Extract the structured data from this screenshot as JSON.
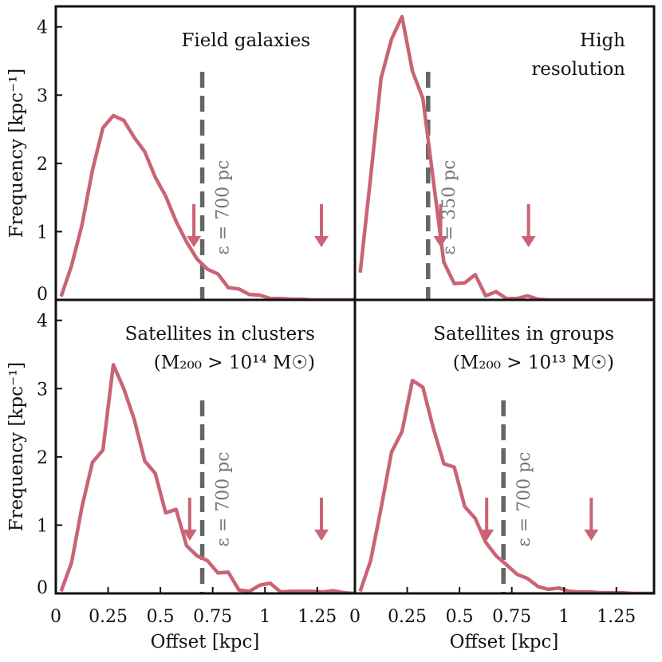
{
  "colors": {
    "line": "#c96475",
    "dashed": "#666666",
    "eps_text": "#777777",
    "axis": "#111111"
  },
  "chart_data": [
    {
      "type": "line",
      "panel": "top-left",
      "title_lines": [
        "Field galaxies"
      ],
      "title_align": "right",
      "ylabel": "Frequency [kpc⁻¹]",
      "xlabel": "",
      "xlim": [
        0,
        1.43
      ],
      "ylim": [
        0,
        4.3
      ],
      "yticks": [
        "0",
        "1",
        "2",
        "3",
        "4"
      ],
      "xticks": [],
      "vline": 0.7,
      "eps_label": "ε = 700 pc",
      "arrows": [
        0.66,
        1.27
      ],
      "x": [
        0.025,
        0.075,
        0.125,
        0.175,
        0.225,
        0.275,
        0.325,
        0.375,
        0.425,
        0.475,
        0.525,
        0.575,
        0.625,
        0.675,
        0.725,
        0.775,
        0.825,
        0.875,
        0.925,
        0.975,
        1.025,
        1.075,
        1.125,
        1.175,
        1.225,
        1.275,
        1.325,
        1.375,
        1.425
      ],
      "values": [
        0.05,
        0.5,
        1.1,
        1.9,
        2.52,
        2.7,
        2.63,
        2.38,
        2.17,
        1.8,
        1.52,
        1.15,
        0.85,
        0.6,
        0.45,
        0.38,
        0.18,
        0.16,
        0.08,
        0.07,
        0.02,
        0.02,
        0.01,
        0.01,
        0.0,
        0.0,
        0.0,
        0.0,
        0.0
      ]
    },
    {
      "type": "line",
      "panel": "top-right",
      "title_lines": [
        "High",
        "resolution"
      ],
      "title_align": "right",
      "ylabel": "",
      "xlabel": "",
      "xlim": [
        0,
        1.43
      ],
      "ylim": [
        0,
        4.3
      ],
      "yticks": [],
      "xticks": [],
      "vline": 0.35,
      "eps_label": "ε = 350 pc",
      "arrows": [
        0.41,
        0.83
      ],
      "x": [
        0.025,
        0.075,
        0.125,
        0.175,
        0.225,
        0.275,
        0.325,
        0.375,
        0.425,
        0.475,
        0.525,
        0.575,
        0.625,
        0.675,
        0.725,
        0.775,
        0.825,
        0.875,
        0.925,
        0.975,
        1.025,
        1.075,
        1.125,
        1.175,
        1.225,
        1.275,
        1.325,
        1.375,
        1.425
      ],
      "values": [
        0.4,
        1.8,
        3.25,
        3.82,
        4.15,
        3.35,
        2.95,
        1.75,
        0.55,
        0.24,
        0.25,
        0.37,
        0.06,
        0.12,
        0.02,
        0.02,
        0.06,
        0.01,
        0.0,
        0.0,
        0.0,
        0.0,
        0.0,
        0.0,
        0.0,
        0.0,
        0.0,
        0.0,
        0.0
      ]
    },
    {
      "type": "line",
      "panel": "bottom-left",
      "title_lines": [
        "Satellites in clusters",
        "(M₂₀₀ > 10¹⁴ M☉)"
      ],
      "title_align": "right",
      "ylabel": "Frequency [kpc⁻¹]",
      "xlabel": "Offset [kpc]",
      "xlim": [
        0,
        1.43
      ],
      "ylim": [
        0,
        4.3
      ],
      "yticks": [
        "0",
        "1",
        "2",
        "3",
        "4"
      ],
      "xticks": [
        {
          "value": 0,
          "label": "0"
        },
        {
          "value": 0.25,
          "label": "0.25"
        },
        {
          "value": 0.5,
          "label": "0.5"
        },
        {
          "value": 0.75,
          "label": "0.75"
        },
        {
          "value": 1.0,
          "label": "1"
        },
        {
          "value": 1.25,
          "label": "1.25"
        }
      ],
      "vline": 0.7,
      "eps_label": "ε = 700 pc",
      "arrows": [
        0.64,
        1.27
      ],
      "x": [
        0.025,
        0.075,
        0.125,
        0.175,
        0.225,
        0.275,
        0.325,
        0.375,
        0.425,
        0.475,
        0.525,
        0.575,
        0.625,
        0.675,
        0.725,
        0.775,
        0.825,
        0.875,
        0.925,
        0.975,
        1.025,
        1.075,
        1.125,
        1.175,
        1.225,
        1.275,
        1.325,
        1.375,
        1.425
      ],
      "values": [
        0.03,
        0.45,
        1.27,
        1.92,
        2.1,
        3.35,
        3.0,
        2.55,
        1.94,
        1.76,
        1.18,
        1.23,
        0.7,
        0.55,
        0.48,
        0.3,
        0.31,
        0.05,
        0.03,
        0.12,
        0.15,
        0.02,
        0.03,
        0.03,
        0.03,
        0.02,
        0.04,
        0.01,
        0.0
      ]
    },
    {
      "type": "line",
      "panel": "bottom-right",
      "title_lines": [
        "Satellites in groups",
        "(M₂₀₀ > 10¹³ M☉)"
      ],
      "title_align": "right",
      "ylabel": "",
      "xlabel": "Offset [kpc]",
      "xlim": [
        0,
        1.43
      ],
      "ylim": [
        0,
        4.3
      ],
      "yticks": [],
      "xticks": [
        {
          "value": 0,
          "label": "0"
        },
        {
          "value": 0.25,
          "label": "0.25"
        },
        {
          "value": 0.5,
          "label": "0.5"
        },
        {
          "value": 0.75,
          "label": "0.75"
        },
        {
          "value": 1.0,
          "label": "1"
        },
        {
          "value": 1.25,
          "label": "1.25"
        }
      ],
      "vline": 0.71,
      "eps_label": "ε = 700 pc",
      "arrows": [
        0.63,
        1.13
      ],
      "x": [
        0.025,
        0.075,
        0.125,
        0.175,
        0.225,
        0.275,
        0.325,
        0.375,
        0.425,
        0.475,
        0.525,
        0.575,
        0.625,
        0.675,
        0.725,
        0.775,
        0.825,
        0.875,
        0.925,
        0.975,
        1.025,
        1.075,
        1.125,
        1.175,
        1.225,
        1.275,
        1.325,
        1.375,
        1.425
      ],
      "values": [
        0.03,
        0.48,
        1.25,
        2.07,
        2.37,
        3.12,
        3.02,
        2.42,
        1.9,
        1.85,
        1.27,
        1.1,
        0.75,
        0.55,
        0.42,
        0.28,
        0.22,
        0.1,
        0.06,
        0.08,
        0.03,
        0.02,
        0.02,
        0.01,
        0.01,
        0.01,
        0.0,
        0.0,
        0.0
      ]
    }
  ]
}
